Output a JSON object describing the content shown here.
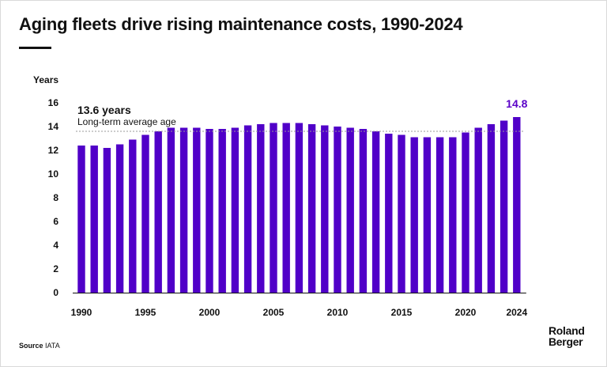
{
  "title": "Aging fleets drive rising maintenance costs, 1990-2024",
  "source": {
    "label": "Source",
    "text": "IATA"
  },
  "logo": {
    "line1": "Roland",
    "line2": "Berger"
  },
  "colors": {
    "bar": "#5000c8",
    "accent": "#5a00c8",
    "text": "#111111",
    "avg_line": "#9a9a9a"
  },
  "chart_data": {
    "type": "bar",
    "ylabel": "Years",
    "xlabel": "",
    "ylim": [
      0,
      16
    ],
    "yticks": [
      0,
      2,
      4,
      6,
      8,
      10,
      12,
      14,
      16
    ],
    "grid": false,
    "categories": [
      1990,
      1991,
      1992,
      1993,
      1994,
      1995,
      1996,
      1997,
      1998,
      1999,
      2000,
      2001,
      2002,
      2003,
      2004,
      2005,
      2006,
      2007,
      2008,
      2009,
      2010,
      2011,
      2012,
      2013,
      2014,
      2015,
      2016,
      2017,
      2018,
      2019,
      2020,
      2021,
      2022,
      2023,
      2024
    ],
    "xtick_labels": [
      "1990",
      "1995",
      "2000",
      "2005",
      "2010",
      "2015",
      "2020",
      "2024"
    ],
    "values": [
      12.4,
      12.4,
      12.2,
      12.5,
      12.9,
      13.3,
      13.6,
      13.9,
      13.9,
      13.9,
      13.8,
      13.8,
      13.9,
      14.1,
      14.2,
      14.3,
      14.3,
      14.3,
      14.2,
      14.1,
      14.0,
      13.9,
      13.8,
      13.6,
      13.4,
      13.3,
      13.1,
      13.1,
      13.1,
      13.1,
      13.5,
      13.9,
      14.2,
      14.5,
      14.8
    ],
    "average": {
      "value": 13.6,
      "label": "13.6 years",
      "description": "Long-term average age"
    },
    "last_value_label": "14.8"
  }
}
